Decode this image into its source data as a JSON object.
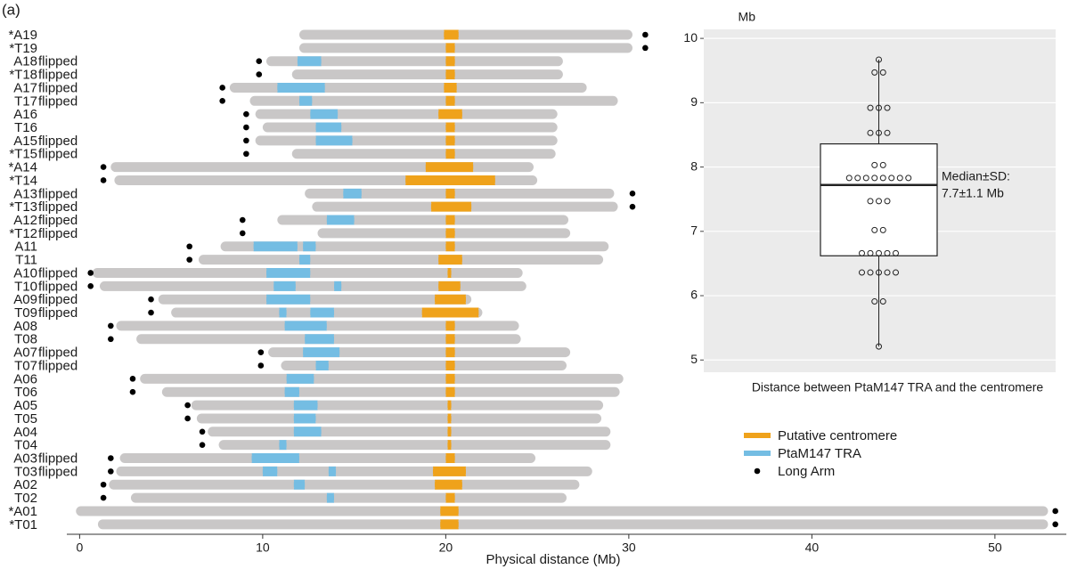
{
  "panel_label": "(a)",
  "chart_data": [
    {
      "type": "chromosomes",
      "xlabel": "Physical distance (Mb)",
      "xlim": [
        -0.7,
        53.9
      ],
      "xticks": [
        0,
        10,
        20,
        30,
        40,
        50
      ],
      "bar_color": "#c9c7c7",
      "legend": [
        {
          "name": "Putative centromere",
          "color": "#efa21b",
          "shape": "line"
        },
        {
          "name": "PtaM147 TRA",
          "color": "#74bde3",
          "shape": "line"
        },
        {
          "name": "Long Arm",
          "color": "#000000",
          "shape": "dot"
        }
      ],
      "rows": [
        {
          "label": "*A19",
          "start": 12.0,
          "end": 30.2,
          "centromere": [
            19.9,
            20.7
          ],
          "tra": [],
          "long_arm": 30.9
        },
        {
          "label": "*T19",
          "start": 12.0,
          "end": 30.2,
          "centromere": [
            20.0,
            20.5
          ],
          "tra": [],
          "long_arm": 30.9
        },
        {
          "label": "A18",
          "note": "flipped",
          "start": 10.2,
          "end": 26.4,
          "centromere": [
            20.0,
            20.5
          ],
          "tra": [
            [
              11.9,
              13.2
            ]
          ],
          "long_arm": 9.8
        },
        {
          "label": "*T18",
          "note": "flipped",
          "start": 11.6,
          "end": 26.4,
          "centromere": [
            20.0,
            20.5
          ],
          "tra": [],
          "long_arm": 9.8
        },
        {
          "label": "A17",
          "note": "flipped",
          "start": 8.2,
          "end": 27.7,
          "centromere": [
            19.9,
            20.6
          ],
          "tra": [
            [
              10.8,
              13.4
            ]
          ],
          "long_arm": 7.8
        },
        {
          "label": "T17",
          "note": "flipped",
          "start": 9.3,
          "end": 29.4,
          "centromere": [
            20.0,
            20.5
          ],
          "tra": [
            [
              12.0,
              12.7
            ]
          ],
          "long_arm": 7.8
        },
        {
          "label": "A16",
          "start": 9.6,
          "end": 26.1,
          "centromere": [
            19.6,
            20.9
          ],
          "tra": [
            [
              12.6,
              14.1
            ]
          ],
          "long_arm": 9.1
        },
        {
          "label": "T16",
          "start": 10.0,
          "end": 26.1,
          "centromere": [
            20.0,
            20.5
          ],
          "tra": [
            [
              12.9,
              14.3
            ]
          ],
          "long_arm": 9.1
        },
        {
          "label": "A15",
          "note": "flipped",
          "start": 9.6,
          "end": 26.1,
          "centromere": [
            20.0,
            20.5
          ],
          "tra": [
            [
              12.9,
              14.9
            ]
          ],
          "long_arm": 9.1
        },
        {
          "label": "*T15",
          "note": "flipped",
          "start": 11.6,
          "end": 26.0,
          "centromere": [
            20.0,
            20.5
          ],
          "tra": [],
          "long_arm": 9.1
        },
        {
          "label": "*A14",
          "start": 1.7,
          "end": 24.8,
          "centromere": [
            18.9,
            21.5
          ],
          "tra": [],
          "long_arm": 1.3
        },
        {
          "label": "*T14",
          "start": 1.9,
          "end": 25.0,
          "centromere": [
            17.8,
            22.7
          ],
          "tra": [],
          "long_arm": 1.3
        },
        {
          "label": "A13",
          "note": "flipped",
          "start": 12.3,
          "end": 29.2,
          "centromere": [
            20.0,
            20.5
          ],
          "tra": [
            [
              14.4,
              15.4
            ]
          ],
          "long_arm": 30.2
        },
        {
          "label": "*T13",
          "note": "flipped",
          "start": 12.7,
          "end": 29.4,
          "centromere": [
            19.2,
            21.4
          ],
          "tra": [],
          "long_arm": 30.2
        },
        {
          "label": "A12",
          "note": "flipped",
          "start": 10.8,
          "end": 26.7,
          "centromere": [
            20.0,
            20.5
          ],
          "tra": [
            [
              13.5,
              15.0
            ]
          ],
          "long_arm": 8.9
        },
        {
          "label": "*T12",
          "note": "flipped",
          "start": 13.0,
          "end": 26.8,
          "centromere": [
            20.0,
            20.5
          ],
          "tra": [],
          "long_arm": 8.9
        },
        {
          "label": "A11",
          "start": 7.7,
          "end": 28.9,
          "centromere": [
            20.0,
            20.5
          ],
          "tra": [
            [
              9.5,
              11.9
            ],
            [
              12.2,
              12.9
            ]
          ],
          "long_arm": 6.0
        },
        {
          "label": "T11",
          "start": 6.5,
          "end": 28.6,
          "centromere": [
            19.6,
            20.9
          ],
          "tra": [
            [
              12.0,
              12.6
            ]
          ],
          "long_arm": 6.0
        },
        {
          "label": "A10",
          "note": "flipped",
          "start": 0.7,
          "end": 24.2,
          "centromere": [
            20.1,
            20.3
          ],
          "tra": [
            [
              10.2,
              12.6
            ]
          ],
          "long_arm": 0.6
        },
        {
          "label": "T10",
          "note": "flipped",
          "start": 1.1,
          "end": 24.4,
          "centromere": [
            19.6,
            20.8
          ],
          "tra": [
            [
              10.6,
              11.8
            ],
            [
              13.9,
              14.3
            ]
          ],
          "long_arm": 0.6
        },
        {
          "label": "A09",
          "note": "flipped",
          "start": 4.3,
          "end": 21.4,
          "centromere": [
            19.4,
            21.1
          ],
          "tra": [
            [
              10.2,
              12.6
            ]
          ],
          "long_arm": 3.9
        },
        {
          "label": "T09",
          "note": "flipped",
          "start": 5.0,
          "end": 22.0,
          "centromere": [
            18.7,
            21.8
          ],
          "tra": [
            [
              10.9,
              11.3
            ],
            [
              12.6,
              13.9
            ]
          ],
          "long_arm": 3.9
        },
        {
          "label": "A08",
          "start": 2.0,
          "end": 24.0,
          "centromere": [
            20.0,
            20.5
          ],
          "tra": [
            [
              11.2,
              13.5
            ]
          ],
          "long_arm": 1.7
        },
        {
          "label": "T08",
          "start": 3.1,
          "end": 24.1,
          "centromere": [
            20.0,
            20.5
          ],
          "tra": [
            [
              12.3,
              13.9
            ]
          ],
          "long_arm": 1.7
        },
        {
          "label": "A07",
          "note": "flipped",
          "start": 10.3,
          "end": 26.8,
          "centromere": [
            20.0,
            20.5
          ],
          "tra": [
            [
              12.2,
              14.2
            ]
          ],
          "long_arm": 9.9
        },
        {
          "label": "T07",
          "note": "flipped",
          "start": 11.0,
          "end": 26.6,
          "centromere": [
            20.0,
            20.5
          ],
          "tra": [
            [
              12.9,
              13.6
            ]
          ],
          "long_arm": 9.9
        },
        {
          "label": "A06",
          "start": 3.3,
          "end": 29.7,
          "centromere": [
            20.0,
            20.5
          ],
          "tra": [
            [
              11.3,
              12.8
            ]
          ],
          "long_arm": 2.9
        },
        {
          "label": "T06",
          "start": 4.5,
          "end": 29.5,
          "centromere": [
            20.0,
            20.5
          ],
          "tra": [
            [
              11.2,
              12.0
            ]
          ],
          "long_arm": 2.9
        },
        {
          "label": "A05",
          "start": 6.1,
          "end": 28.6,
          "centromere": [
            20.1,
            20.3
          ],
          "tra": [
            [
              11.7,
              13.0
            ]
          ],
          "long_arm": 5.9
        },
        {
          "label": "T05",
          "start": 6.4,
          "end": 28.5,
          "centromere": [
            20.1,
            20.3
          ],
          "tra": [
            [
              11.7,
              12.9
            ]
          ],
          "long_arm": 5.9
        },
        {
          "label": "A04",
          "start": 7.0,
          "end": 29.0,
          "centromere": [
            20.1,
            20.3
          ],
          "tra": [
            [
              11.7,
              13.2
            ]
          ],
          "long_arm": 6.7
        },
        {
          "label": "T04",
          "start": 7.6,
          "end": 29.0,
          "centromere": [
            20.1,
            20.3
          ],
          "tra": [
            [
              10.9,
              11.3
            ]
          ],
          "long_arm": 6.7
        },
        {
          "label": "A03",
          "note": "flipped",
          "start": 2.2,
          "end": 24.9,
          "centromere": [
            20.0,
            20.5
          ],
          "tra": [
            [
              9.4,
              12.0
            ]
          ],
          "long_arm": 1.7
        },
        {
          "label": "T03",
          "note": "flipped",
          "start": 2.0,
          "end": 28.0,
          "centromere": [
            19.3,
            21.1
          ],
          "tra": [
            [
              10.0,
              10.8
            ],
            [
              13.6,
              14.0
            ]
          ],
          "long_arm": 1.7
        },
        {
          "label": "A02",
          "start": 1.6,
          "end": 27.3,
          "centromere": [
            19.4,
            20.9
          ],
          "tra": [
            [
              11.7,
              12.3
            ]
          ],
          "long_arm": 1.3
        },
        {
          "label": "T02",
          "start": 2.8,
          "end": 26.6,
          "centromere": [
            20.0,
            20.5
          ],
          "tra": [
            [
              13.5,
              13.9
            ]
          ],
          "long_arm": 1.3
        },
        {
          "label": "*A01",
          "start": -0.2,
          "end": 52.9,
          "centromere": [
            19.7,
            20.7
          ],
          "tra": [],
          "long_arm": 53.3
        },
        {
          "label": "*T01",
          "start": 1.0,
          "end": 52.9,
          "centromere": [
            19.7,
            20.7
          ],
          "tra": [],
          "long_arm": 53.3
        }
      ]
    },
    {
      "type": "box",
      "ylabel": "Mb",
      "xlabel": "Distance between PtaM147 TRA and the centromere",
      "ylim": [
        4.81,
        10.14
      ],
      "yticks": [
        5,
        6,
        7,
        8,
        9,
        10
      ],
      "grid": true,
      "box": {
        "whisker_low": 5.21,
        "q1": 6.62,
        "median": 7.72,
        "q3": 8.36,
        "whisker_high": 9.67
      },
      "points": [
        9.67,
        9.47,
        9.47,
        8.92,
        8.92,
        8.92,
        8.53,
        8.53,
        8.53,
        8.03,
        8.03,
        7.83,
        7.83,
        7.83,
        7.83,
        7.83,
        7.83,
        7.83,
        7.83,
        7.47,
        7.47,
        7.47,
        7.02,
        7.02,
        6.66,
        6.66,
        6.66,
        6.66,
        6.66,
        6.36,
        6.36,
        6.36,
        6.36,
        6.36,
        5.91,
        5.91,
        5.21
      ],
      "annotation": [
        "Median±SD:",
        "7.7±1.1 Mb"
      ]
    }
  ]
}
